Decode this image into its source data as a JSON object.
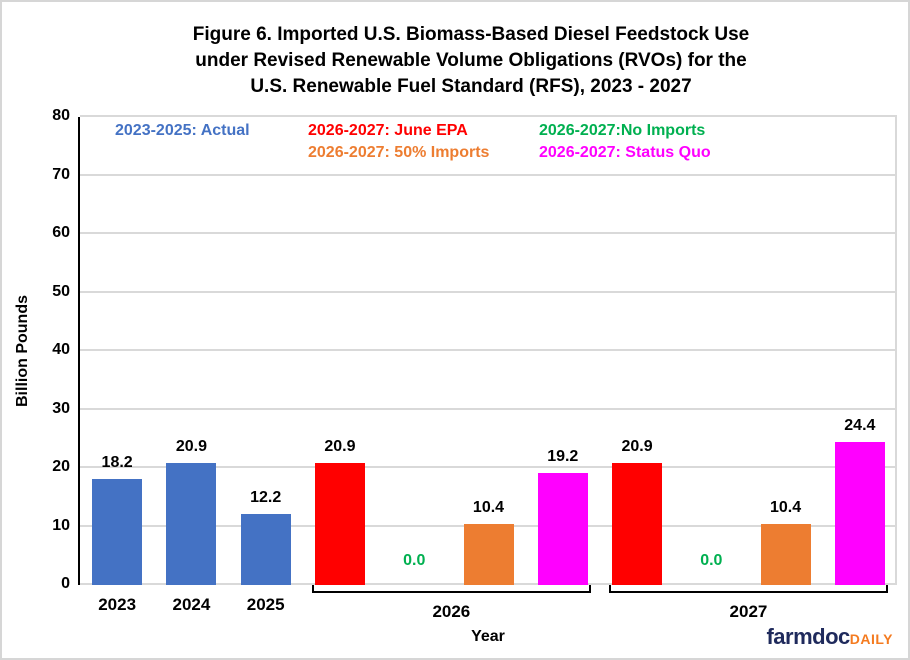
{
  "page": {
    "background": "#FFFFFF",
    "border_color": "#D6D6D6",
    "gridline_color": "#D9D9D9",
    "axis_color": "#000000"
  },
  "chart_data": {
    "type": "bar",
    "title": "Figure 6. Imported U.S. Biomass-Based Diesel Feedstock Use\nunder Revised Renewable Volume Obligations (RVOs) for the\nU.S. Renewable Fuel Standard (RFS), 2023 - 2027",
    "xlabel": "Year",
    "ylabel": "Billion Pounds",
    "ylim": [
      0,
      80
    ],
    "ytick_interval": 10,
    "grid": true,
    "legend_position": "top-inside",
    "series_colors": {
      "actual": "#4472C4",
      "june_epa": "#FF0000",
      "no_imports": "#00B050",
      "imports_50": "#ED7D31",
      "status_quo": "#FF00FF"
    },
    "value_label_color": "#000000",
    "bars": [
      {
        "year": "2023",
        "scenario": "actual",
        "value": 18.2
      },
      {
        "year": "2024",
        "scenario": "actual",
        "value": 20.9
      },
      {
        "year": "2025",
        "scenario": "actual",
        "value": 12.2
      },
      {
        "year": "2026",
        "scenario": "june_epa",
        "value": 20.9
      },
      {
        "year": "2026",
        "scenario": "no_imports",
        "value": 0.0
      },
      {
        "year": "2026",
        "scenario": "imports_50",
        "value": 10.4
      },
      {
        "year": "2026",
        "scenario": "status_quo",
        "value": 19.2
      },
      {
        "year": "2027",
        "scenario": "june_epa",
        "value": 20.9
      },
      {
        "year": "2027",
        "scenario": "no_imports",
        "value": 0.0
      },
      {
        "year": "2027",
        "scenario": "imports_50",
        "value": 10.4
      },
      {
        "year": "2027",
        "scenario": "status_quo",
        "value": 24.4
      }
    ],
    "x_axis": {
      "single_labels": [
        {
          "label": "2023",
          "slot": 0
        },
        {
          "label": "2024",
          "slot": 1
        },
        {
          "label": "2025",
          "slot": 2
        }
      ],
      "group_labels": [
        {
          "label": "2026",
          "slots": [
            3,
            6
          ]
        },
        {
          "label": "2027",
          "slots": [
            7,
            10
          ]
        }
      ]
    }
  },
  "legend": {
    "items": [
      {
        "label": "2023-2025: Actual",
        "color": "#4472C4"
      },
      {
        "label": "2026-2027: June EPA",
        "color": "#FF0000"
      },
      {
        "label": "2026-2027: 50% Imports",
        "color": "#ED7D31"
      },
      {
        "label": "2026-2027:No Imports",
        "color": "#00B050"
      },
      {
        "label": "2026-2027: Status Quo",
        "color": "#FF00FF"
      }
    ]
  },
  "footer": {
    "logo_main": "farmdoc",
    "logo_daily": "DAILY",
    "logo_main_color": "#1F2A5C",
    "logo_daily_color": "#F47B20"
  }
}
